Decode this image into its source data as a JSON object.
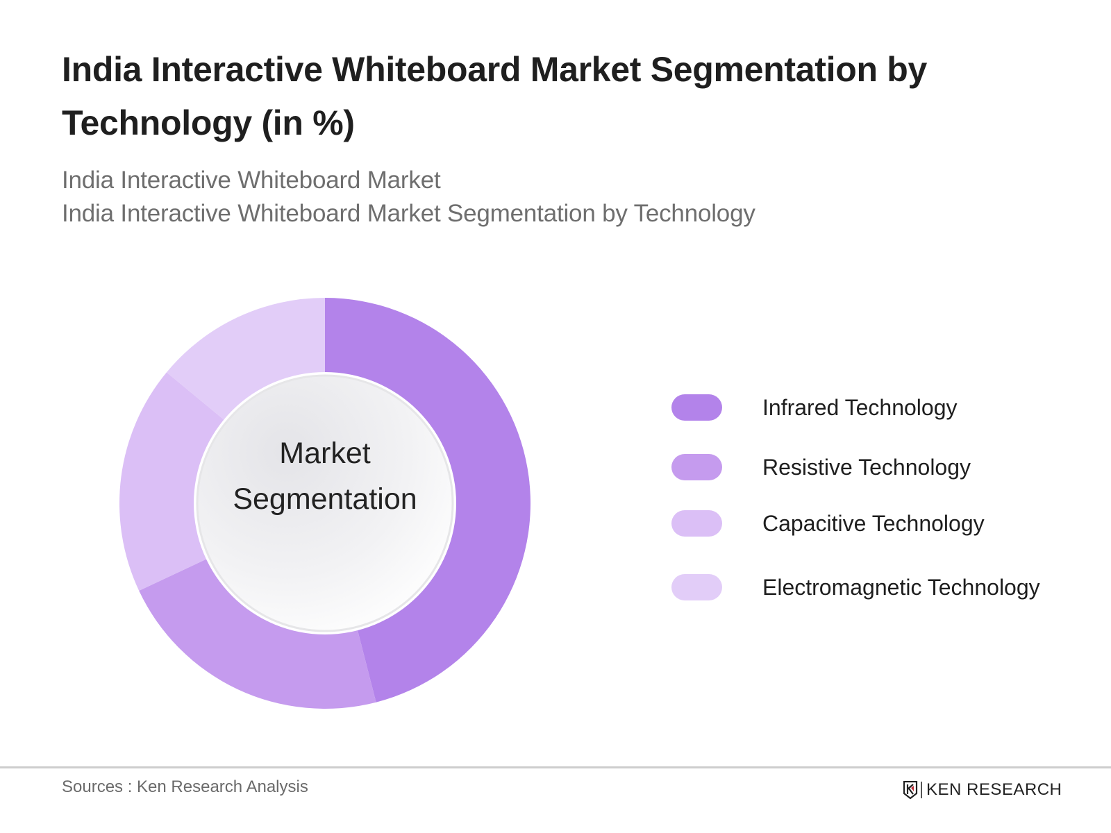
{
  "header": {
    "title": "India Interactive Whiteboard Market Segmentation by Technology (in %)",
    "subtitle_1": "India Interactive Whiteboard Market",
    "subtitle_2": "India Interactive Whiteboard Market Segmentation by Technology"
  },
  "center_label": {
    "line1": "Market",
    "line2": "Segmentation"
  },
  "legend": {
    "items": [
      {
        "label": "Infrared Technology",
        "color": "#b383ea"
      },
      {
        "label": "Resistive Technology",
        "color": "#c59bee"
      },
      {
        "label": "Capacitive Technology",
        "color": "#dbbff6"
      },
      {
        "label": "Electromagnetic Technology",
        "color": "#e2cdf8"
      }
    ]
  },
  "footer": {
    "sources": "Sources : Ken Research Analysis",
    "brand": "KEN RESEARCH"
  },
  "chart_data": {
    "type": "pie",
    "variant": "donut",
    "title": "India Interactive Whiteboard Market Segmentation by Technology (in %)",
    "subtitle": [
      "India Interactive Whiteboard Market",
      "India Interactive Whiteboard Market Segmentation by Technology"
    ],
    "center_text": "Market Segmentation",
    "categories": [
      "Infrared Technology",
      "Resistive Technology",
      "Capacitive Technology",
      "Electromagnetic Technology"
    ],
    "values": [
      46,
      22,
      18,
      14
    ],
    "unit": "%",
    "colors": [
      "#b383ea",
      "#c59bee",
      "#dbbff6",
      "#e2cdf8"
    ],
    "start_angle": "12 o'clock, clockwise",
    "legend_position": "right",
    "data_labels": false
  }
}
